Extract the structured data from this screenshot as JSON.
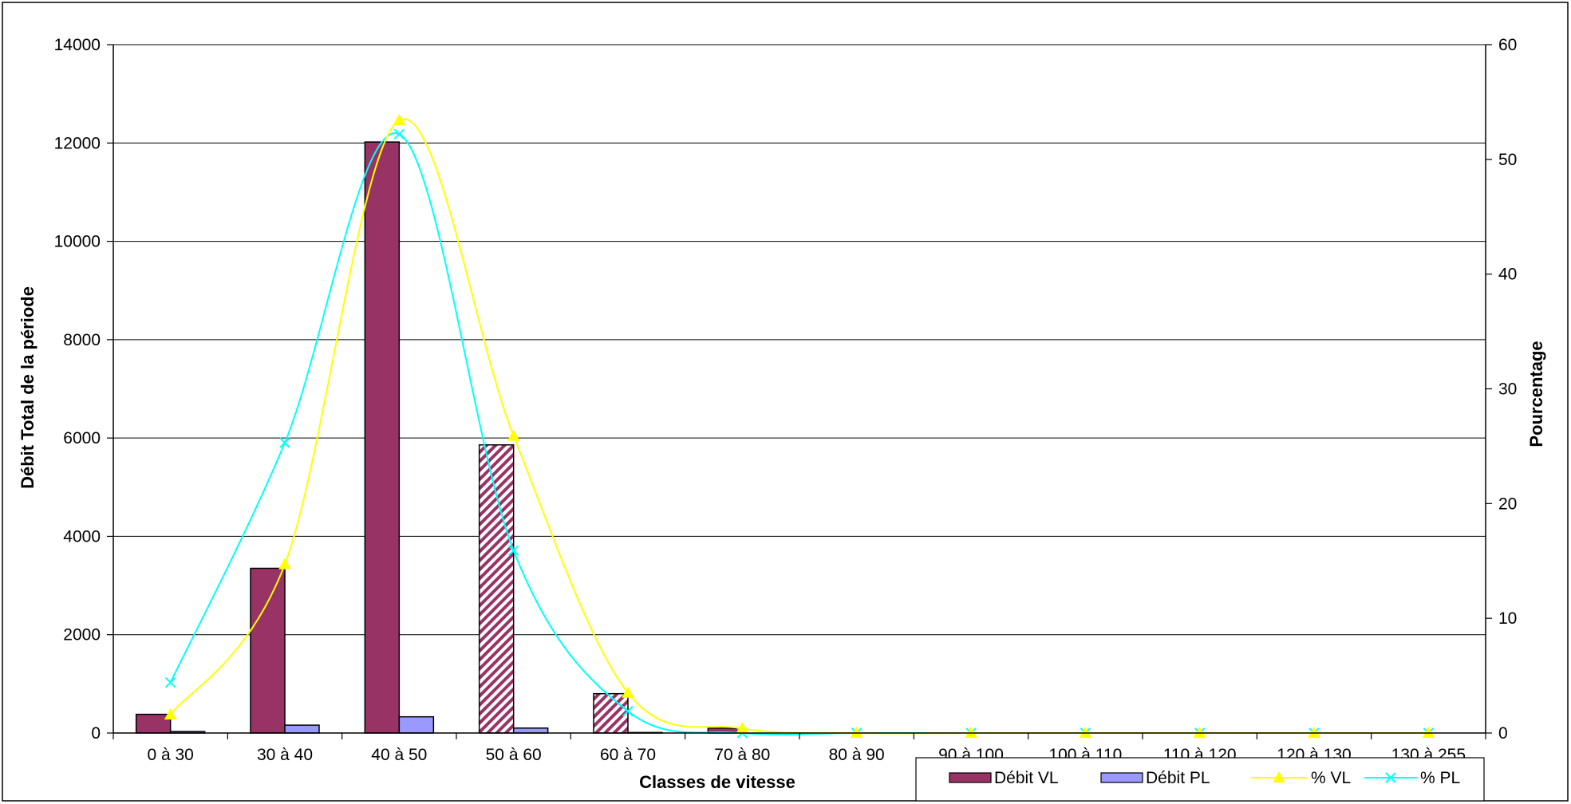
{
  "chart_data": {
    "type": "bar",
    "categories": [
      "0 à 30",
      "30 à 40",
      "40 à 50",
      "50 à 60",
      "60 à 70",
      "70 à 80",
      "80 à 90",
      "90 à 100",
      "100 à 110",
      "110 à 120",
      "120 à 130",
      "130 à 255"
    ],
    "xlabel": "Classes de vitesse",
    "ylabel": "Débit Total de la période",
    "y2label": "Pourcentage",
    "ylim": [
      0,
      14000
    ],
    "y2lim": [
      0,
      60
    ],
    "yticks": [
      "0",
      "2000",
      "4000",
      "6000",
      "8000",
      "10000",
      "12000",
      "14000"
    ],
    "y2ticks": [
      "0",
      "10",
      "20",
      "30",
      "40",
      "50",
      "60"
    ],
    "grid": true,
    "legend_position": "bottom-right",
    "bar_series": [
      {
        "name": "Débit VL",
        "color": "#993366",
        "values": [
          380,
          3350,
          12020,
          5860,
          800,
          100,
          0,
          0,
          0,
          0,
          0,
          0
        ],
        "hatched": [
          false,
          false,
          false,
          true,
          true,
          false,
          false,
          false,
          false,
          false,
          false,
          false
        ]
      },
      {
        "name": "Débit PL",
        "color": "#9999ff",
        "values": [
          30,
          160,
          330,
          100,
          10,
          0,
          0,
          0,
          0,
          0,
          0,
          0
        ]
      }
    ],
    "line_series": [
      {
        "name": "% VL",
        "color": "#ffff00",
        "marker": "triangle",
        "axis": "right",
        "values": [
          1.6,
          14.7,
          53.4,
          25.9,
          3.5,
          0.4,
          0,
          0,
          0,
          0,
          0,
          0
        ]
      },
      {
        "name": "% PL",
        "color": "#00ffff",
        "marker": "x",
        "axis": "right",
        "values": [
          4.4,
          25.3,
          52.2,
          15.9,
          1.9,
          0,
          0,
          0,
          0,
          0,
          0,
          0
        ]
      }
    ]
  }
}
